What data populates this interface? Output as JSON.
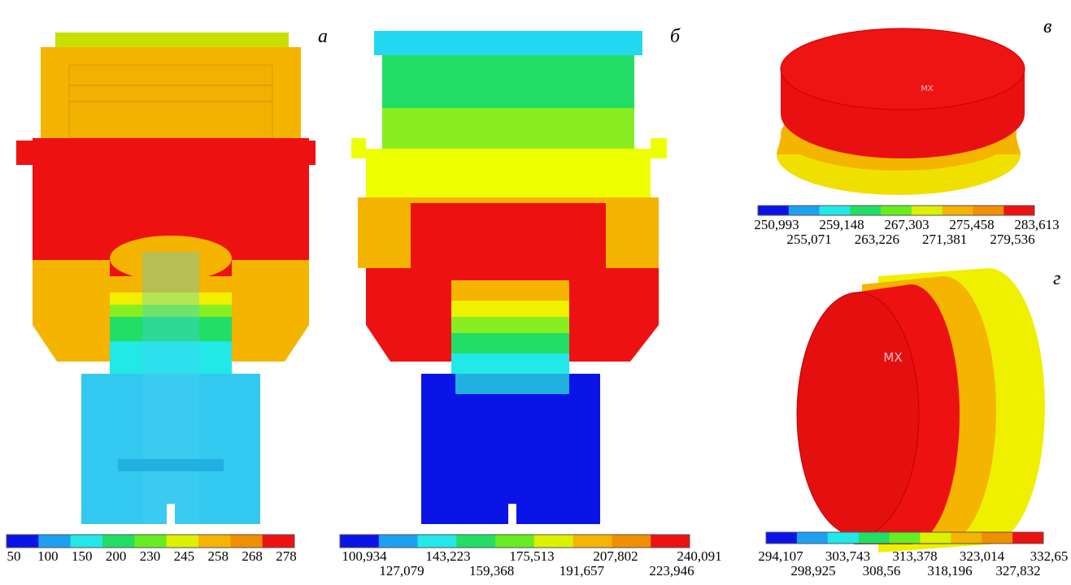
{
  "panels": [
    {
      "label": "а",
      "scale_top": [
        "50",
        "100",
        "150",
        "200",
        "230",
        "245",
        "258",
        "268",
        "278"
      ],
      "scale_bottom": []
    },
    {
      "label": "б",
      "scale_top": [
        "100,934",
        "143,223",
        "175,513",
        "207,802",
        "240,091"
      ],
      "scale_bottom": [
        "127,079",
        "159,368",
        "191,657",
        "223,946"
      ]
    },
    {
      "label": "в",
      "mx": "MX",
      "scale_top": [
        "250,993",
        "259,148",
        "267,303",
        "275,458",
        "283,613"
      ],
      "scale_bottom": [
        "255,071",
        "263,226",
        "271,381",
        "279,536"
      ]
    },
    {
      "label": "г",
      "mx": "MX",
      "scale_top": [
        "294,107",
        "303,743",
        "313,378",
        "323,014",
        "332,65"
      ],
      "scale_bottom": [
        "298,925",
        "308,56",
        "318,196",
        "327,832"
      ]
    }
  ]
}
